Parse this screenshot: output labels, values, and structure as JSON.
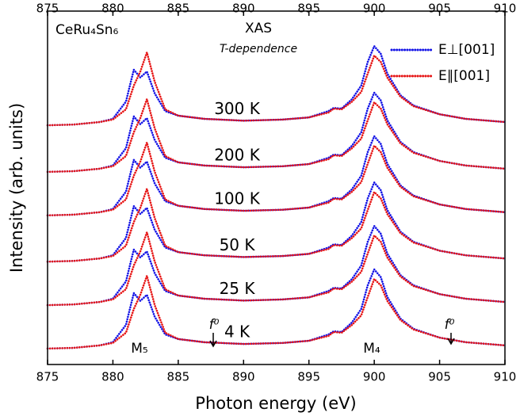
{
  "chart_data": {
    "type": "line",
    "xlabel": "Photon energy (eV)",
    "ylabel": "Intensity (arb. units)",
    "xlim": [
      875,
      910
    ],
    "xticks": [
      875,
      880,
      885,
      890,
      895,
      900,
      905,
      910
    ],
    "ylim": [
      0,
      100
    ],
    "legend": "top-right",
    "sample": "CeRu₄Sn₆",
    "method": "XAS",
    "subtitle": "T-dependence",
    "edges": [
      "M₅",
      "M₄"
    ],
    "marker": "f⁰",
    "curve_labels": [
      "4 K",
      "25 K",
      "50 K",
      "100 K",
      "200 K",
      "300 K"
    ],
    "x": [
      875,
      877,
      879,
      880,
      881,
      881.6,
      882.1,
      882.6,
      883.2,
      884,
      885,
      887,
      890,
      893,
      895,
      896.5,
      896.9,
      897.5,
      898.3,
      899,
      899.5,
      900,
      900.5,
      901,
      902,
      903,
      905,
      907,
      910
    ],
    "series": [
      {
        "name": "E⊥[001]",
        "color": "#1414e6",
        "curves": [
          [
            4.5,
            4.7,
            5.4,
            6.3,
            11.2,
            20.2,
            18.0,
            19.7,
            13.5,
            8.5,
            7.2,
            6.3,
            5.8,
            6.1,
            6.7,
            8.5,
            9.4,
            9.2,
            11.9,
            15.7,
            22.4,
            26.9,
            24.7,
            19.1,
            13.0,
            10.1,
            7.6,
            6.3,
            5.4
          ],
          [
            16.8,
            17.0,
            17.7,
            18.6,
            23.5,
            32.5,
            30.3,
            32.0,
            25.8,
            20.8,
            19.5,
            18.6,
            18.1,
            18.4,
            19.0,
            20.8,
            21.7,
            21.5,
            24.2,
            28.0,
            34.7,
            39.2,
            37.0,
            31.4,
            25.3,
            22.4,
            19.9,
            18.6,
            17.7
          ],
          [
            29.1,
            29.3,
            30.0,
            30.9,
            35.8,
            44.8,
            42.6,
            44.3,
            38.1,
            33.1,
            31.8,
            30.9,
            30.4,
            30.7,
            31.3,
            33.1,
            34.0,
            33.8,
            36.5,
            40.3,
            47.0,
            51.5,
            49.3,
            43.7,
            37.6,
            34.7,
            32.2,
            30.9,
            30.0
          ],
          [
            42.2,
            42.4,
            43.1,
            44.0,
            48.9,
            57.9,
            55.7,
            57.4,
            51.2,
            46.2,
            44.9,
            44.0,
            43.5,
            43.8,
            44.4,
            46.2,
            47.1,
            46.9,
            49.6,
            53.4,
            60.1,
            64.6,
            62.4,
            56.8,
            50.7,
            47.8,
            45.3,
            44.0,
            43.1
          ],
          [
            54.5,
            54.7,
            55.4,
            56.3,
            61.2,
            70.2,
            68.0,
            69.7,
            63.5,
            58.5,
            57.2,
            56.3,
            55.8,
            56.1,
            56.7,
            58.5,
            59.4,
            59.2,
            61.9,
            65.7,
            72.4,
            76.9,
            74.7,
            69.1,
            63.0,
            60.1,
            57.6,
            56.3,
            55.4
          ],
          [
            67.7,
            67.9,
            68.6,
            69.5,
            74.4,
            83.4,
            81.2,
            82.9,
            76.7,
            71.7,
            70.4,
            69.5,
            69.0,
            69.3,
            69.9,
            71.7,
            72.6,
            72.4,
            75.1,
            78.9,
            85.6,
            90.1,
            87.9,
            82.3,
            76.2,
            73.3,
            70.8,
            69.5,
            68.6
          ]
        ]
      },
      {
        "name": "E∥[001]",
        "color": "#e61414",
        "curves": [
          [
            4.5,
            4.7,
            5.4,
            6.1,
            9.0,
            15.7,
            19.7,
            25.1,
            16.8,
            9.0,
            7.2,
            6.3,
            5.8,
            6.1,
            6.7,
            8.1,
            9.2,
            9.0,
            11.2,
            13.9,
            19.1,
            24.2,
            22.4,
            18.0,
            12.6,
            9.9,
            7.6,
            6.3,
            5.4
          ],
          [
            16.8,
            17.0,
            17.7,
            18.4,
            21.3,
            28.0,
            32.0,
            37.4,
            29.1,
            21.3,
            19.5,
            18.6,
            18.1,
            18.4,
            19.0,
            20.4,
            21.5,
            21.3,
            23.5,
            26.2,
            31.4,
            36.5,
            34.7,
            30.3,
            24.9,
            22.2,
            19.9,
            18.6,
            17.7
          ],
          [
            29.1,
            29.3,
            30.0,
            30.7,
            33.6,
            40.3,
            44.3,
            49.7,
            41.4,
            33.6,
            31.8,
            30.9,
            30.4,
            30.7,
            31.3,
            32.7,
            33.8,
            33.6,
            35.8,
            38.5,
            43.7,
            48.8,
            47.0,
            42.6,
            37.2,
            34.5,
            32.2,
            30.9,
            30.0
          ],
          [
            42.2,
            42.4,
            43.1,
            43.8,
            46.7,
            53.4,
            57.4,
            62.8,
            54.5,
            46.7,
            44.9,
            44.0,
            43.5,
            43.8,
            44.4,
            45.8,
            46.9,
            46.7,
            48.9,
            51.6,
            56.8,
            61.9,
            60.1,
            55.7,
            50.3,
            47.6,
            45.3,
            44.0,
            43.1
          ],
          [
            54.5,
            54.7,
            55.4,
            56.1,
            59.0,
            65.7,
            69.7,
            75.1,
            66.8,
            59.0,
            57.2,
            56.3,
            55.8,
            56.1,
            56.7,
            58.1,
            59.2,
            59.0,
            61.2,
            63.9,
            69.1,
            74.2,
            72.4,
            68.0,
            62.6,
            59.9,
            57.6,
            56.3,
            55.4
          ],
          [
            67.7,
            67.9,
            68.6,
            69.3,
            72.2,
            78.9,
            82.9,
            88.3,
            80.0,
            72.2,
            70.4,
            69.5,
            69.0,
            69.3,
            69.9,
            71.3,
            72.4,
            72.2,
            74.4,
            77.1,
            82.3,
            87.4,
            85.6,
            81.2,
            75.8,
            73.1,
            70.8,
            69.5,
            68.6
          ]
        ]
      }
    ]
  }
}
